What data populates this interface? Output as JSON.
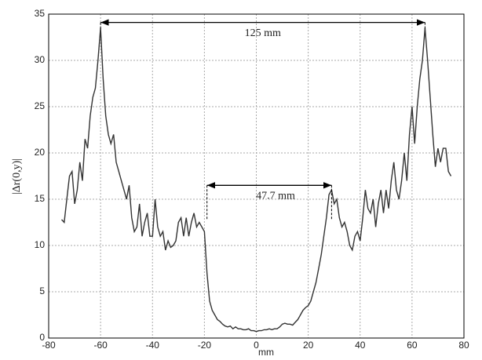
{
  "chart_data": {
    "type": "line",
    "xlabel": "mm",
    "ylabel": "|Δr(0,y)|",
    "x": [
      -75,
      -74,
      -73,
      -72,
      -71,
      -70,
      -69,
      -68,
      -67,
      -66,
      -65,
      -64,
      -63,
      -62,
      -61,
      -60,
      -59,
      -58,
      -57,
      -56,
      -55,
      -54,
      -53,
      -52,
      -51,
      -50,
      -49,
      -48,
      -47,
      -46,
      -45,
      -44,
      -43,
      -42,
      -41,
      -40,
      -39,
      -38,
      -37,
      -36,
      -35,
      -34,
      -33,
      -32,
      -31,
      -30,
      -29,
      -28,
      -27,
      -26,
      -25,
      -24,
      -23,
      -22,
      -21,
      -20,
      -19,
      -18,
      -17,
      -16,
      -15,
      -14,
      -13,
      -12,
      -11,
      -10,
      -9,
      -8,
      -7,
      -6,
      -5,
      -4,
      -3,
      -2,
      -1,
      0,
      1,
      2,
      3,
      4,
      5,
      6,
      7,
      8,
      9,
      10,
      11,
      12,
      13,
      14,
      15,
      16,
      17,
      18,
      19,
      20,
      21,
      22,
      23,
      24,
      25,
      26,
      27,
      28,
      29,
      30,
      31,
      32,
      33,
      34,
      35,
      36,
      37,
      38,
      39,
      40,
      41,
      42,
      43,
      44,
      45,
      46,
      47,
      48,
      49,
      50,
      51,
      52,
      53,
      54,
      55,
      56,
      57,
      58,
      59,
      60,
      61,
      62,
      63,
      64,
      65,
      66,
      67,
      68,
      69,
      70,
      71,
      72,
      73,
      74,
      75
    ],
    "series": [
      {
        "color": "#333333",
        "values": [
          12.8,
          12.5,
          15,
          17.5,
          18,
          14.5,
          16,
          19,
          17,
          21.5,
          20.5,
          24,
          26,
          27,
          30,
          33.5,
          28,
          24,
          22,
          21,
          22,
          19,
          18,
          17,
          16,
          15,
          16.5,
          13,
          11.5,
          12,
          14.5,
          11,
          12.5,
          13.5,
          11,
          11,
          15,
          12,
          11,
          11.5,
          9.5,
          10.5,
          9.8,
          10,
          10.5,
          12.5,
          13,
          11,
          13,
          11,
          12.5,
          13.5,
          12,
          12.5,
          12,
          11.5,
          7,
          4,
          3,
          2.5,
          2,
          1.8,
          1.5,
          1.3,
          1.2,
          1.3,
          1,
          1.2,
          1,
          1,
          0.9,
          0.9,
          1,
          0.8,
          0.8,
          0.7,
          0.8,
          0.8,
          0.9,
          0.9,
          1,
          0.9,
          1,
          1,
          1.2,
          1.5,
          1.6,
          1.5,
          1.5,
          1.4,
          1.7,
          2,
          2.5,
          3,
          3.3,
          3.5,
          4,
          5,
          6,
          7.5,
          9,
          11,
          13,
          15.5,
          16,
          14.5,
          15,
          13,
          12,
          12.5,
          11.5,
          10,
          9.5,
          11,
          11.5,
          10.5,
          13,
          16,
          14,
          13.5,
          15,
          12,
          14.5,
          16,
          13.5,
          16,
          14,
          17,
          19,
          16,
          15,
          17,
          20,
          17,
          22,
          25,
          21,
          25,
          28,
          30,
          33.5,
          30,
          26,
          22,
          18.5,
          20.5,
          19,
          20.5,
          20.5,
          18,
          17.5
        ]
      }
    ],
    "annotations": [
      {
        "text": "125 mm",
        "x": [
          -60,
          65
        ],
        "y": 34.1
      },
      {
        "text": "47.7 mm",
        "x": [
          -19,
          29
        ],
        "y": 16.5
      }
    ],
    "xlim": [
      -80,
      80
    ],
    "xticks": [
      -80,
      -60,
      -40,
      -20,
      0,
      20,
      40,
      60,
      80
    ],
    "ylim": [
      0,
      35
    ],
    "yticks": [
      0,
      5,
      10,
      15,
      20,
      25,
      30,
      35
    ],
    "grid": true
  }
}
